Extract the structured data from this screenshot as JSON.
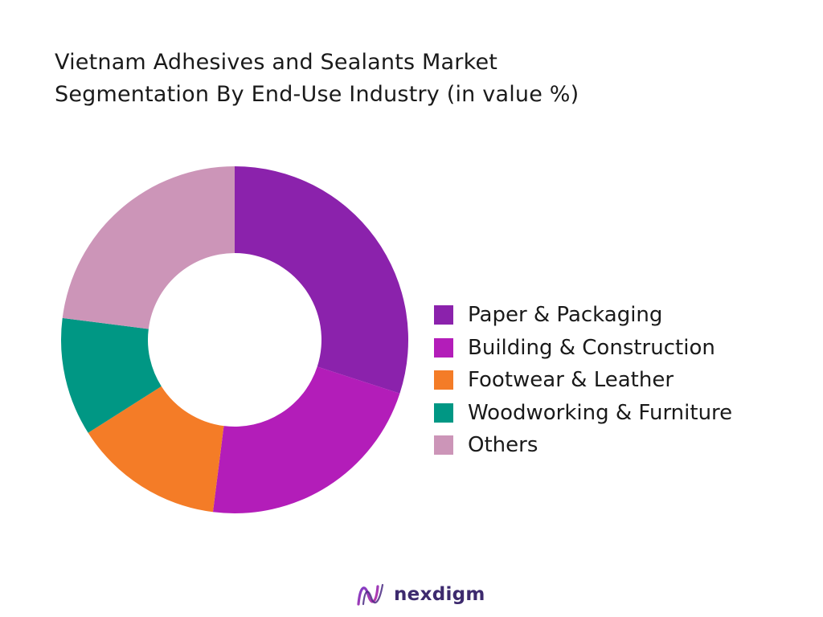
{
  "chart_data": {
    "type": "pie",
    "title": "Vietnam Adhesives and Sealants Market",
    "subtitle": "Segmentation By End-Use Industry (in value %)",
    "donut": true,
    "legend_position": "right",
    "categories": [
      "Paper & Packaging",
      "Building & Construction",
      "Footwear & Leather",
      "Woodworking & Furniture",
      "Others"
    ],
    "values": [
      30,
      22,
      14,
      11,
      23
    ],
    "colors": [
      "#8b22ac",
      "#b31db9",
      "#f47c27",
      "#009784",
      "#cc95b8"
    ]
  },
  "branding": {
    "logo_text": "nexdigm"
  }
}
